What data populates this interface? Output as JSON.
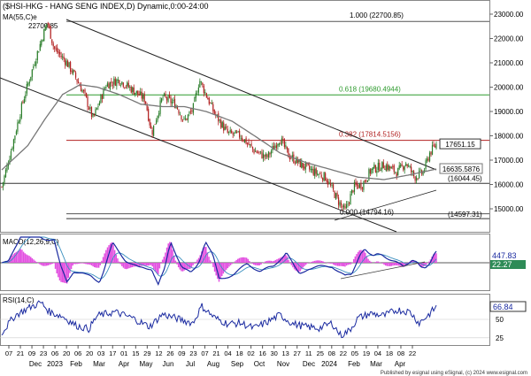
{
  "header": {
    "title": "($HSI-HKG - HANG SENG INDEX,D) Dynamic,0:00-24:00",
    "ma_label": "MA(55,C)e",
    "macd_label": "MACD(12,26,9,C)",
    "rsi_label": "RSI(14,C)",
    "footer": "Published by esignal using eSignal, (c) 2024 www.esignal.com"
  },
  "colors": {
    "price": "#b22222",
    "ma": "#777777",
    "channel": "#222222",
    "fib_red": "#b22222",
    "fib_green": "#2e9b2e",
    "macd_line": "#1a2aa0",
    "macd_signal": "#3a8fbf",
    "macd_hist": "#e24fe0",
    "rsi_line": "#1a2aa0"
  },
  "annotations": {
    "high_label": "22700.85",
    "fib_1000": "1.000 (22700.85)",
    "fib_618": "0.618 (19680.4944)",
    "fib_382": "0.382 (17814.5156)",
    "fib_000": "0.000 (14794.16)",
    "level_16044": "(16044.45)",
    "level_14597": "(14597.31)",
    "last_price": "17651.15",
    "ma_value": "16635.5876",
    "macd_val1": "447.83",
    "macd_val2": "22.27",
    "rsi_val": "66.84",
    "rsi_50": "50",
    "rsi_25": "25"
  },
  "axis_ticks": {
    "price": [
      "23000.00",
      "22000.00",
      "21000.00",
      "20000.00",
      "19000.00",
      "18000.00",
      "17000.00",
      "16000.00",
      "15000.00"
    ],
    "days": [
      "07",
      "21",
      "09",
      "23",
      "06",
      "20",
      "06",
      "20",
      "03",
      "17",
      "01",
      "15",
      "29",
      "12",
      "26",
      "09",
      "23",
      "07",
      "21",
      "04",
      "18",
      "02",
      "16",
      "30",
      "13",
      "27",
      "11",
      "25",
      "08",
      "22",
      "05",
      "19",
      "04",
      "18",
      "08",
      "22"
    ],
    "months": [
      "Dec",
      "2023",
      "Feb",
      "Mar",
      "Apr",
      "May",
      "Jun",
      "Jul",
      "Aug",
      "Sep",
      "Oct",
      "Nov",
      "Dec",
      "2024",
      "Feb",
      "Mar",
      "Apr"
    ]
  },
  "chart_data": {
    "type": "candlestick",
    "instrument": "$HSI-HKG",
    "y_range": [
      14400,
      23300
    ],
    "price_path": [
      [
        0,
        15900
      ],
      [
        0.02,
        17300
      ],
      [
        0.05,
        19500
      ],
      [
        0.08,
        21300
      ],
      [
        0.105,
        22700.85
      ],
      [
        0.12,
        21600
      ],
      [
        0.15,
        21000
      ],
      [
        0.17,
        20400
      ],
      [
        0.19,
        19700
      ],
      [
        0.21,
        18700
      ],
      [
        0.24,
        20100
      ],
      [
        0.27,
        20300
      ],
      [
        0.3,
        19900
      ],
      [
        0.33,
        19500
      ],
      [
        0.345,
        18100
      ],
      [
        0.37,
        19600
      ],
      [
        0.4,
        19300
      ],
      [
        0.42,
        18600
      ],
      [
        0.44,
        19100
      ],
      [
        0.455,
        20300
      ],
      [
        0.47,
        19700
      ],
      [
        0.49,
        18900
      ],
      [
        0.52,
        18100
      ],
      [
        0.55,
        18000
      ],
      [
        0.58,
        17400
      ],
      [
        0.61,
        17100
      ],
      [
        0.64,
        17900
      ],
      [
        0.66,
        17200
      ],
      [
        0.69,
        16800
      ],
      [
        0.72,
        16500
      ],
      [
        0.745,
        16300
      ],
      [
        0.775,
        15300
      ],
      [
        0.79,
        14900
      ],
      [
        0.81,
        15900
      ],
      [
        0.83,
        16000
      ],
      [
        0.85,
        16600
      ],
      [
        0.88,
        16800
      ],
      [
        0.91,
        16500
      ],
      [
        0.93,
        16900
      ],
      [
        0.95,
        16300
      ],
      [
        0.97,
        16500
      ],
      [
        0.985,
        17300
      ],
      [
        1.0,
        17651.15
      ]
    ],
    "ma_path": [
      [
        0,
        16600
      ],
      [
        0.06,
        17600
      ],
      [
        0.1,
        18700
      ],
      [
        0.14,
        19700
      ],
      [
        0.18,
        20100
      ],
      [
        0.22,
        20000
      ],
      [
        0.27,
        19700
      ],
      [
        0.32,
        19300
      ],
      [
        0.37,
        19200
      ],
      [
        0.42,
        19200
      ],
      [
        0.47,
        19000
      ],
      [
        0.53,
        18600
      ],
      [
        0.59,
        17900
      ],
      [
        0.64,
        17300
      ],
      [
        0.7,
        16900
      ],
      [
        0.76,
        16600
      ],
      [
        0.82,
        16300
      ],
      [
        0.88,
        16200
      ],
      [
        0.94,
        16400
      ],
      [
        1.0,
        16635.5876
      ]
    ],
    "fibonacci": [
      {
        "ratio": 1.0,
        "value": 22700.85
      },
      {
        "ratio": 0.618,
        "value": 19680.4944
      },
      {
        "ratio": 0.382,
        "value": 17814.5156
      },
      {
        "ratio": 0.0,
        "value": 14794.16
      }
    ],
    "horizontal_levels": [
      16044.45,
      14597.31
    ],
    "last_price": 17651.15,
    "ma_last": 16635.5876,
    "macd": {
      "line_last": 447.83,
      "signal_last": 22.27
    },
    "rsi": {
      "last": 66.84,
      "levels": [
        50,
        25
      ],
      "path": [
        [
          0,
          32
        ],
        [
          0.03,
          55
        ],
        [
          0.06,
          65
        ],
        [
          0.09,
          73
        ],
        [
          0.11,
          60
        ],
        [
          0.14,
          54
        ],
        [
          0.17,
          42
        ],
        [
          0.2,
          37
        ],
        [
          0.22,
          55
        ],
        [
          0.26,
          60
        ],
        [
          0.3,
          52
        ],
        [
          0.34,
          40
        ],
        [
          0.37,
          57
        ],
        [
          0.41,
          50
        ],
        [
          0.44,
          45
        ],
        [
          0.46,
          68
        ],
        [
          0.49,
          52
        ],
        [
          0.52,
          44
        ],
        [
          0.55,
          45
        ],
        [
          0.58,
          38
        ],
        [
          0.61,
          46
        ],
        [
          0.64,
          56
        ],
        [
          0.67,
          44
        ],
        [
          0.7,
          40
        ],
        [
          0.73,
          38
        ],
        [
          0.76,
          45
        ],
        [
          0.78,
          28
        ],
        [
          0.8,
          35
        ],
        [
          0.82,
          52
        ],
        [
          0.85,
          58
        ],
        [
          0.88,
          55
        ],
        [
          0.91,
          63
        ],
        [
          0.94,
          60
        ],
        [
          0.96,
          45
        ],
        [
          0.98,
          55
        ],
        [
          1.0,
          66.84
        ]
      ]
    }
  }
}
